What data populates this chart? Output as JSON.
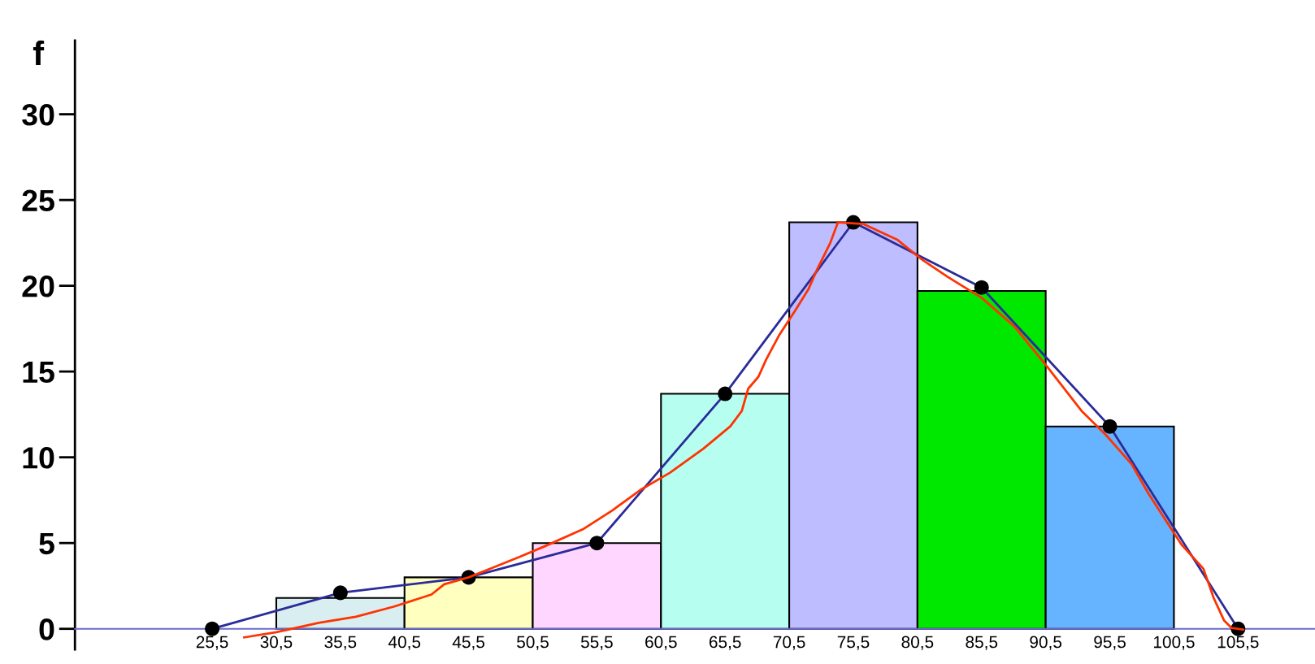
{
  "chart_data": {
    "type": "histogram",
    "ylabel": "f",
    "bins": [
      30.5,
      40.5,
      50.5,
      60.5,
      70.5,
      80.5,
      90.5,
      100.5
    ],
    "values": [
      1.8,
      3.0,
      5.0,
      13.7,
      23.7,
      19.7,
      11.8
    ],
    "colors": [
      "#d9eef0",
      "#ffffc0",
      "#ffd6ff",
      "#b6fff0",
      "#bdbdff",
      "#00e800",
      "#66b3ff"
    ],
    "series": [
      {
        "type": "line",
        "color": "#2b2b9a",
        "marker": "circle",
        "x": [
          25.5,
          35.5,
          45.5,
          55.5,
          65.5,
          75.5,
          85.5,
          95.5,
          105.5
        ],
        "values": [
          0,
          2.1,
          3.0,
          5.0,
          13.7,
          23.7,
          19.9,
          11.8,
          0
        ]
      },
      {
        "type": "line",
        "color": "#ff3300",
        "marker": "none",
        "x": [
          28.0,
          30.5,
          33.8,
          36.7,
          39.7,
          42.6,
          43.6,
          45.5,
          47.5,
          49.5,
          51.4,
          54.4,
          56.7,
          58.9,
          61.2,
          63.8,
          65.9,
          66.8,
          67.3,
          68.1,
          68.7,
          69.7,
          71.0,
          72.0,
          72.7,
          73.7,
          74.3,
          76.3,
          78.9,
          80.9,
          82.9,
          85.5,
          88.1,
          90.7,
          93.3,
          95.2,
          97.2,
          98.5,
          99.8,
          101.1,
          102.8,
          103.6,
          104.4,
          105.0,
          105.9
        ],
        "values": [
          -0.5,
          -0.2,
          0.35,
          0.7,
          1.3,
          2.0,
          2.6,
          3.0,
          3.6,
          4.2,
          4.8,
          5.8,
          6.9,
          8.1,
          9.1,
          10.5,
          11.8,
          12.7,
          14.0,
          14.7,
          15.7,
          17.1,
          18.6,
          19.8,
          21.0,
          22.5,
          23.7,
          23.6,
          22.7,
          21.5,
          20.5,
          19.3,
          17.6,
          15.2,
          12.7,
          11.3,
          9.6,
          7.9,
          6.4,
          4.9,
          3.5,
          1.8,
          0.5,
          0.05,
          -0.05
        ]
      }
    ],
    "xlim": [
      14.8,
      111.5
    ],
    "ylim": [
      -1.2,
      34.3
    ],
    "xticks": [
      {
        "value": 25.5,
        "label": "25,5"
      },
      {
        "value": 30.5,
        "label": "30,5"
      },
      {
        "value": 35.5,
        "label": "35,5"
      },
      {
        "value": 40.5,
        "label": "40,5"
      },
      {
        "value": 45.5,
        "label": "45,5"
      },
      {
        "value": 50.5,
        "label": "50,5"
      },
      {
        "value": 55.5,
        "label": "55,5"
      },
      {
        "value": 60.5,
        "label": "60,5"
      },
      {
        "value": 65.5,
        "label": "65,5"
      },
      {
        "value": 70.5,
        "label": "70,5"
      },
      {
        "value": 75.5,
        "label": "75,5"
      },
      {
        "value": 80.5,
        "label": "80,5"
      },
      {
        "value": 85.5,
        "label": "85,5"
      },
      {
        "value": 90.5,
        "label": "90,5"
      },
      {
        "value": 95.5,
        "label": "95,5"
      },
      {
        "value": 100.5,
        "label": "100,5"
      },
      {
        "value": 105.5,
        "label": "105,5"
      }
    ],
    "yticks": [
      0,
      5,
      10,
      15,
      20,
      25,
      30
    ],
    "grid": false,
    "legend": false
  }
}
